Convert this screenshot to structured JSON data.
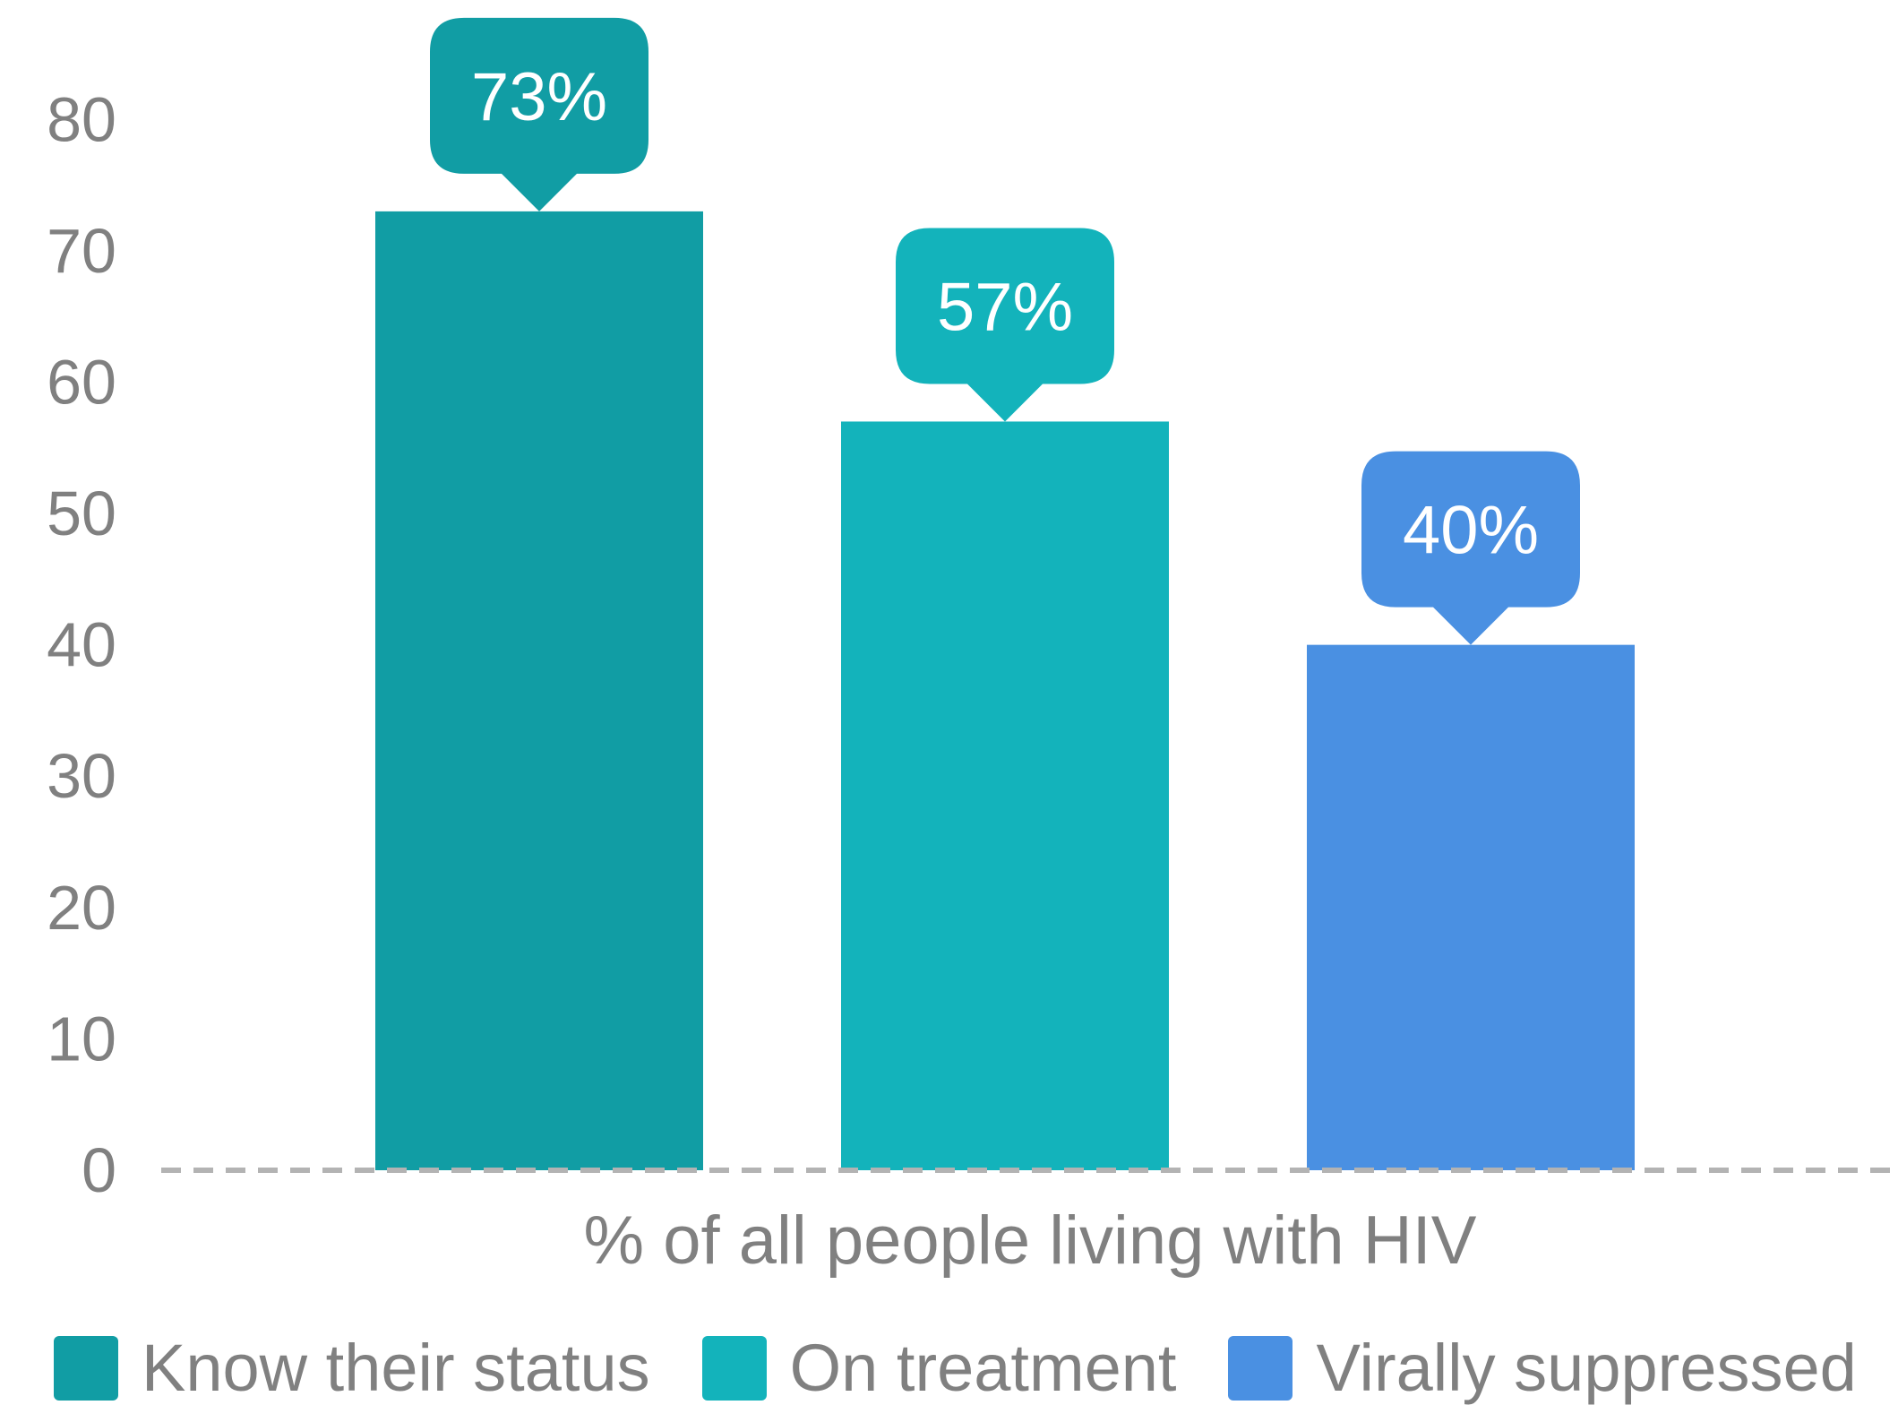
{
  "chart_data": {
    "type": "bar",
    "title": "",
    "xlabel": "% of all people living with HIV",
    "ylabel": "",
    "ylim": [
      0,
      85
    ],
    "yticks": [
      0,
      10,
      20,
      30,
      40,
      50,
      60,
      70,
      80
    ],
    "grid": false,
    "legend_position": "bottom",
    "series": [
      {
        "name": "Know their status",
        "value": 73,
        "label": "73%",
        "color": "#119da4"
      },
      {
        "name": "On treatment",
        "value": 57,
        "label": "57%",
        "color": "#13b3bb"
      },
      {
        "name": "Virally suppressed",
        "value": 40,
        "label": "40%",
        "color": "#4a90e2"
      }
    ],
    "baseline_color": "#b3b3b3",
    "text_color": "#808080"
  }
}
